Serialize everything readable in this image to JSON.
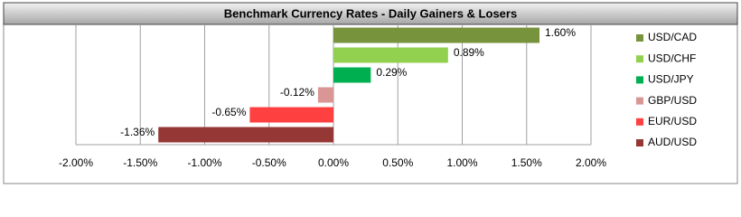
{
  "chart_data": {
    "type": "hbar",
    "title": "Benchmark Currency Rates - Daily Gainers & Losers",
    "categories": [
      "USD/CAD",
      "USD/CHF",
      "USD/JPY",
      "GBP/USD",
      "EUR/USD",
      "AUD/USD"
    ],
    "values": [
      1.6,
      0.89,
      0.29,
      -0.12,
      -0.65,
      -1.36
    ],
    "value_labels": [
      "1.60%",
      "0.89%",
      "0.29%",
      "-0.12%",
      "-0.65%",
      "-1.36%"
    ],
    "colors": [
      "#77933c",
      "#92d050",
      "#00b050",
      "#d99694",
      "#ff4040",
      "#953735"
    ],
    "xlim": [
      -2,
      2
    ],
    "xticks": [
      {
        "value": -2,
        "label": "-2.00%"
      },
      {
        "value": -1.5,
        "label": "-1.50%"
      },
      {
        "value": -1,
        "label": "-1.00%"
      },
      {
        "value": -0.5,
        "label": "-0.50%"
      },
      {
        "value": 0,
        "label": "0.00%"
      },
      {
        "value": 0.5,
        "label": "0.50%"
      },
      {
        "value": 1,
        "label": "1.00%"
      },
      {
        "value": 1.5,
        "label": "1.50%"
      },
      {
        "value": 2,
        "label": "2.00%"
      }
    ],
    "grid": true,
    "legend": "right"
  }
}
